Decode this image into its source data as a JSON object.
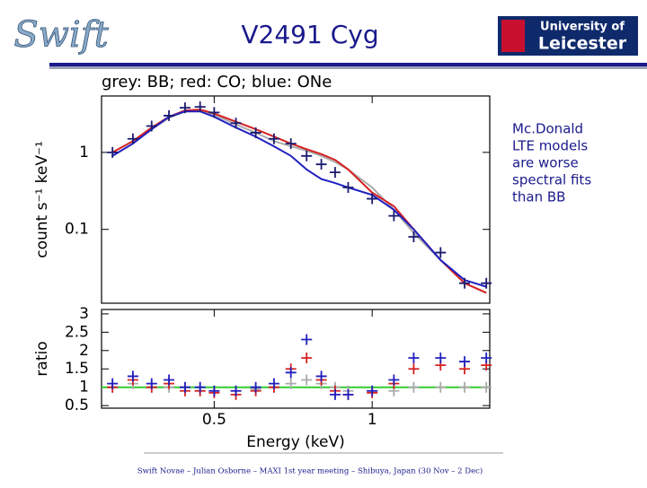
{
  "header": {
    "title": "V2491 Cyg",
    "logo_left": "Swift",
    "logo_right_line1": "University of",
    "logo_right_line2": "Leicester"
  },
  "side_note": [
    "Mc.Donald",
    "LTE models",
    "are worse",
    "spectral fits",
    "than BB"
  ],
  "footer": "Swift Novae – Julian Osborne – MAXI 1st year meeting – Shibuya, Japan (30 Nov – 2 Dec)",
  "chart_data": [
    {
      "type": "line",
      "title": "grey: BB; red: CO; blue: ONe",
      "y_label": "count s⁻¹ keV⁻¹",
      "xscale": "log",
      "yscale": "log",
      "x": [
        0.32,
        0.35,
        0.38,
        0.41,
        0.44,
        0.47,
        0.5,
        0.55,
        0.6,
        0.65,
        0.7,
        0.75,
        0.8,
        0.85,
        0.9,
        1.0,
        1.1,
        1.2,
        1.35,
        1.5,
        1.65
      ],
      "xlim": [
        0.305,
        1.675
      ],
      "ylim": [
        0.011,
        5.4
      ],
      "yticks": [
        0.1,
        1
      ],
      "series": [
        {
          "name": "BB",
          "color": "#aaaaaa",
          "values": [
            1.0,
            1.4,
            2.0,
            2.8,
            3.4,
            3.5,
            3.1,
            2.3,
            1.8,
            1.4,
            1.2,
            1.05,
            0.9,
            0.75,
            0.6,
            0.35,
            0.18,
            0.09,
            0.04,
            0.02,
            0.015
          ]
        },
        {
          "name": "CO",
          "color": "#d62020",
          "values": [
            1.0,
            1.4,
            2.1,
            2.9,
            3.5,
            3.6,
            3.2,
            2.5,
            2.0,
            1.6,
            1.3,
            1.1,
            0.95,
            0.8,
            0.6,
            0.3,
            0.2,
            0.1,
            0.04,
            0.02,
            0.015
          ]
        },
        {
          "name": "ONe",
          "color": "#2020c0",
          "values": [
            0.9,
            1.3,
            2.0,
            2.9,
            3.4,
            3.4,
            2.9,
            2.1,
            1.6,
            1.2,
            0.9,
            0.6,
            0.45,
            0.4,
            0.35,
            0.28,
            0.18,
            0.1,
            0.04,
            0.022,
            0.018
          ]
        },
        {
          "name": "data",
          "color": "#1a1a70",
          "marker": "cross",
          "values": [
            1.0,
            1.5,
            2.2,
            3.0,
            3.8,
            3.9,
            3.3,
            2.4,
            1.8,
            1.5,
            1.3,
            0.9,
            0.7,
            0.55,
            0.35,
            0.25,
            0.15,
            0.08,
            0.05,
            0.02,
            0.02
          ]
        }
      ]
    },
    {
      "type": "line",
      "y_label": "ratio",
      "x_label": "Energy (keV)",
      "xscale": "log",
      "x": [
        0.32,
        0.35,
        0.38,
        0.41,
        0.44,
        0.47,
        0.5,
        0.55,
        0.6,
        0.65,
        0.7,
        0.75,
        0.8,
        0.85,
        0.9,
        1.0,
        1.1,
        1.2,
        1.35,
        1.5,
        1.65
      ],
      "xlim": [
        0.305,
        1.675
      ],
      "xticks": [
        0.5,
        1
      ],
      "ylim": [
        0.43,
        3.12
      ],
      "yticks": [
        0.5,
        1,
        1.5,
        2,
        2.5,
        3
      ],
      "reference_line": {
        "value": 1,
        "color": "#33cc33"
      },
      "series": [
        {
          "name": "BB",
          "color": "#aaaaaa",
          "marker": "cross",
          "values": [
            1.0,
            1.1,
            1.0,
            1.0,
            1.0,
            0.9,
            0.9,
            0.9,
            0.95,
            1.0,
            1.1,
            1.2,
            1.1,
            1.0,
            0.9,
            0.9,
            0.9,
            1.0,
            1.0,
            1.0,
            1.0
          ]
        },
        {
          "name": "CO",
          "color": "#d62020",
          "marker": "cross",
          "values": [
            1,
            1.2,
            1.0,
            1.1,
            0.9,
            0.9,
            0.85,
            0.8,
            0.9,
            1.0,
            1.5,
            1.8,
            1.2,
            0.9,
            0.8,
            0.85,
            1.1,
            1.5,
            1.6,
            1.5,
            1.6
          ]
        },
        {
          "name": "ONe",
          "color": "#2020c0",
          "marker": "cross",
          "values": [
            1.1,
            1.3,
            1.1,
            1.2,
            1.0,
            1.0,
            0.9,
            0.9,
            1.0,
            1.1,
            1.4,
            2.3,
            1.3,
            0.8,
            0.8,
            0.9,
            1.2,
            1.8,
            1.8,
            1.7,
            1.8
          ]
        }
      ]
    }
  ]
}
